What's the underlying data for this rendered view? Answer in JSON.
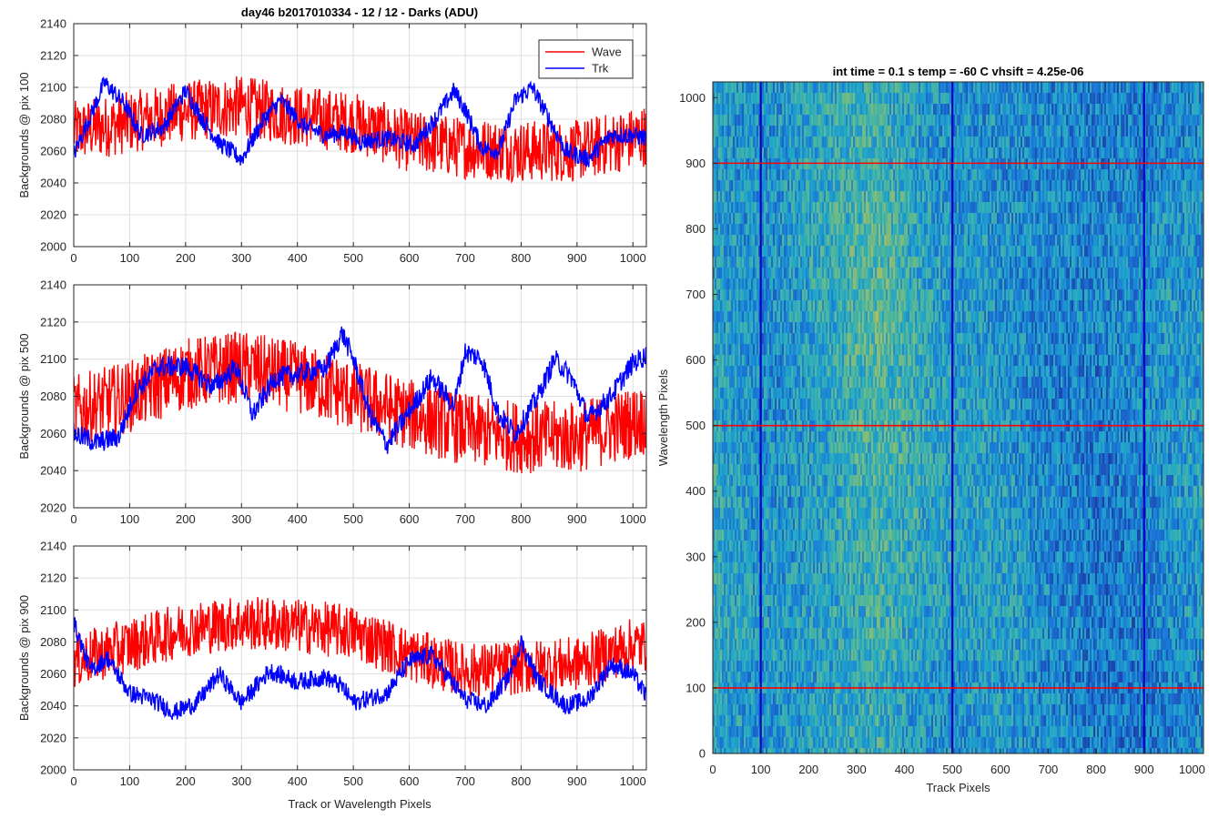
{
  "figure": {
    "title": "day46 b2017010334 - 12 / 12 - Darks (ADU)",
    "xlabel": "Track or Wavelength Pixels"
  },
  "chart_data": [
    {
      "type": "line",
      "ylabel": "Backgrounds @ pix 100",
      "xlim": [
        0,
        1024
      ],
      "ylim": [
        2000,
        2140
      ],
      "xticks": [
        0,
        100,
        200,
        300,
        400,
        500,
        600,
        700,
        800,
        900,
        1000
      ],
      "yticks": [
        2000,
        2020,
        2040,
        2060,
        2080,
        2100,
        2120,
        2140
      ],
      "grid": true,
      "legend": "top-right",
      "series": [
        {
          "name": "Wave",
          "color": "#ff0000",
          "noise": 17,
          "trend": [
            [
              0,
              2072
            ],
            [
              100,
              2078
            ],
            [
              200,
              2085
            ],
            [
              300,
              2088
            ],
            [
              400,
              2082
            ],
            [
              500,
              2078
            ],
            [
              600,
              2066
            ],
            [
              700,
              2062
            ],
            [
              800,
              2060
            ],
            [
              900,
              2060
            ],
            [
              1000,
              2068
            ],
            [
              1024,
              2070
            ]
          ]
        },
        {
          "name": "Trk",
          "color": "#0000ff",
          "noise": 5,
          "trend": [
            [
              0,
              2058
            ],
            [
              30,
              2082
            ],
            [
              55,
              2103
            ],
            [
              90,
              2090
            ],
            [
              120,
              2070
            ],
            [
              160,
              2075
            ],
            [
              200,
              2098
            ],
            [
              230,
              2080
            ],
            [
              260,
              2065
            ],
            [
              300,
              2055
            ],
            [
              340,
              2080
            ],
            [
              370,
              2092
            ],
            [
              410,
              2076
            ],
            [
              450,
              2070
            ],
            [
              490,
              2072
            ],
            [
              510,
              2066
            ],
            [
              560,
              2068
            ],
            [
              610,
              2064
            ],
            [
              650,
              2082
            ],
            [
              680,
              2098
            ],
            [
              700,
              2086
            ],
            [
              730,
              2062
            ],
            [
              760,
              2060
            ],
            [
              790,
              2092
            ],
            [
              820,
              2100
            ],
            [
              850,
              2080
            ],
            [
              880,
              2060
            ],
            [
              920,
              2055
            ],
            [
              960,
              2070
            ],
            [
              1000,
              2070
            ],
            [
              1024,
              2068
            ]
          ]
        }
      ]
    },
    {
      "type": "line",
      "ylabel": "Backgrounds @ pix 500",
      "xlim": [
        0,
        1024
      ],
      "ylim": [
        2020,
        2140
      ],
      "xticks": [
        0,
        100,
        200,
        300,
        400,
        500,
        600,
        700,
        800,
        900,
        1000
      ],
      "yticks": [
        2020,
        2040,
        2060,
        2080,
        2100,
        2120,
        2140
      ],
      "grid": true,
      "series": [
        {
          "name": "Wave",
          "color": "#ff0000",
          "noise": 17,
          "trend": [
            [
              0,
              2072
            ],
            [
              100,
              2080
            ],
            [
              200,
              2092
            ],
            [
              300,
              2096
            ],
            [
              400,
              2090
            ],
            [
              500,
              2080
            ],
            [
              600,
              2070
            ],
            [
              700,
              2062
            ],
            [
              800,
              2058
            ],
            [
              900,
              2058
            ],
            [
              1000,
              2066
            ],
            [
              1024,
              2068
            ]
          ]
        },
        {
          "name": "Trk",
          "color": "#0000ff",
          "noise": 5,
          "trend": [
            [
              0,
              2060
            ],
            [
              40,
              2055
            ],
            [
              80,
              2058
            ],
            [
              110,
              2082
            ],
            [
              150,
              2096
            ],
            [
              200,
              2096
            ],
            [
              250,
              2085
            ],
            [
              290,
              2096
            ],
            [
              320,
              2070
            ],
            [
              360,
              2090
            ],
            [
              400,
              2092
            ],
            [
              450,
              2095
            ],
            [
              480,
              2114
            ],
            [
              500,
              2100
            ],
            [
              530,
              2070
            ],
            [
              560,
              2054
            ],
            [
              600,
              2072
            ],
            [
              640,
              2090
            ],
            [
              680,
              2075
            ],
            [
              700,
              2104
            ],
            [
              730,
              2100
            ],
            [
              760,
              2070
            ],
            [
              790,
              2060
            ],
            [
              830,
              2080
            ],
            [
              860,
              2100
            ],
            [
              890,
              2090
            ],
            [
              920,
              2068
            ],
            [
              960,
              2080
            ],
            [
              1000,
              2098
            ],
            [
              1024,
              2102
            ]
          ]
        }
      ]
    },
    {
      "type": "line",
      "ylabel": "Backgrounds @ pix 900",
      "xlim": [
        0,
        1024
      ],
      "ylim": [
        2000,
        2140
      ],
      "xticks": [
        0,
        100,
        200,
        300,
        400,
        500,
        600,
        700,
        800,
        900,
        1000
      ],
      "yticks": [
        2000,
        2020,
        2040,
        2060,
        2080,
        2100,
        2120,
        2140
      ],
      "grid": true,
      "series": [
        {
          "name": "Wave",
          "color": "#ff0000",
          "noise": 15,
          "trend": [
            [
              0,
              2068
            ],
            [
              100,
              2078
            ],
            [
              200,
              2088
            ],
            [
              300,
              2092
            ],
            [
              400,
              2090
            ],
            [
              500,
              2086
            ],
            [
              600,
              2072
            ],
            [
              700,
              2062
            ],
            [
              800,
              2064
            ],
            [
              900,
              2066
            ],
            [
              1000,
              2078
            ],
            [
              1024,
              2078
            ]
          ]
        },
        {
          "name": "Trk",
          "color": "#0000ff",
          "noise": 5,
          "trend": [
            [
              0,
              2092
            ],
            [
              30,
              2062
            ],
            [
              60,
              2070
            ],
            [
              100,
              2048
            ],
            [
              140,
              2044
            ],
            [
              180,
              2036
            ],
            [
              220,
              2042
            ],
            [
              260,
              2060
            ],
            [
              300,
              2042
            ],
            [
              350,
              2062
            ],
            [
              400,
              2055
            ],
            [
              450,
              2058
            ],
            [
              480,
              2052
            ],
            [
              500,
              2042
            ],
            [
              560,
              2048
            ],
            [
              600,
              2068
            ],
            [
              640,
              2072
            ],
            [
              700,
              2044
            ],
            [
              740,
              2040
            ],
            [
              780,
              2060
            ],
            [
              800,
              2080
            ],
            [
              830,
              2056
            ],
            [
              880,
              2040
            ],
            [
              920,
              2044
            ],
            [
              960,
              2066
            ],
            [
              1000,
              2060
            ],
            [
              1024,
              2046
            ]
          ]
        }
      ]
    },
    {
      "type": "heatmap",
      "title": "int time = 0.1 s   temp = -60 C   vhsift = 4.25e-06",
      "xlabel": "Track Pixels",
      "ylabel": "Wavelength Pixels",
      "xlim": [
        0,
        1024
      ],
      "ylim": [
        0,
        1024
      ],
      "xticks": [
        0,
        100,
        200,
        300,
        400,
        500,
        600,
        700,
        800,
        900,
        1000
      ],
      "yticks": [
        0,
        100,
        200,
        300,
        400,
        500,
        600,
        700,
        800,
        900,
        1000
      ],
      "colormap": [
        "#1e3ea8",
        "#1a78d8",
        "#20a8c8",
        "#5cb890",
        "#b8bc58"
      ],
      "column_profile": [
        [
          0,
          0.52
        ],
        [
          60,
          0.45
        ],
        [
          100,
          0.4
        ],
        [
          150,
          0.44
        ],
        [
          200,
          0.5
        ],
        [
          250,
          0.55
        ],
        [
          300,
          0.62
        ],
        [
          340,
          0.66
        ],
        [
          380,
          0.6
        ],
        [
          420,
          0.54
        ],
        [
          460,
          0.48
        ],
        [
          500,
          0.44
        ],
        [
          560,
          0.46
        ],
        [
          620,
          0.43
        ],
        [
          700,
          0.35
        ],
        [
          800,
          0.3
        ],
        [
          860,
          0.33
        ],
        [
          900,
          0.32
        ],
        [
          950,
          0.4
        ],
        [
          1024,
          0.42
        ]
      ],
      "overlay_columns": {
        "values": [
          100,
          500,
          900
        ],
        "color": "#0000c8"
      },
      "overlay_rows": {
        "values": [
          100,
          500,
          900
        ],
        "color": "#ff0000"
      }
    }
  ]
}
